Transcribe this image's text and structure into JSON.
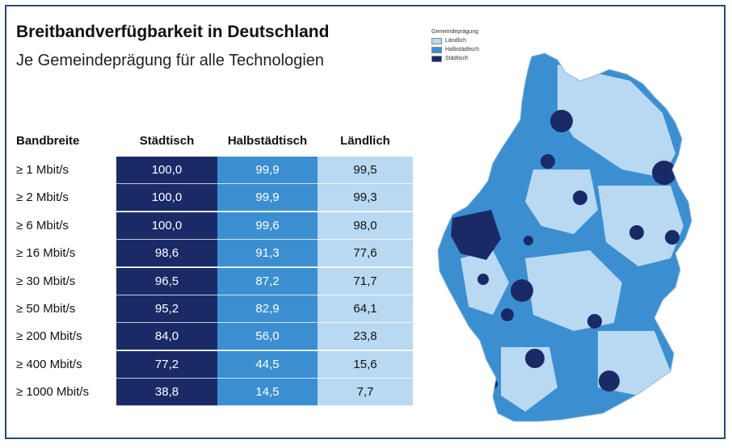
{
  "title": "Breitbandverfügbarkeit in Deutschland",
  "subtitle": "Je Gemeindeprägung für alle Technologien",
  "legend": {
    "title": "Gemeindeprägung",
    "items": [
      "Ländlich",
      "Halbstädtisch",
      "Städtisch"
    ]
  },
  "colors": {
    "urban": "#1a2a67",
    "semi": "#3b8fd0",
    "rural": "#b8d9f1"
  },
  "chart_data": {
    "type": "table",
    "title": "Breitbandverfügbarkeit in Deutschland",
    "subtitle": "Je Gemeindeprägung für alle Technologien",
    "columns": [
      "Bandbreite",
      "Städtisch",
      "Halbstädtisch",
      "Ländlich"
    ],
    "rows": [
      {
        "label": "≥ 1 Mbit/s",
        "values": [
          "100,0",
          "99,9",
          "99,5"
        ]
      },
      {
        "label": "≥ 2 Mbit/s",
        "values": [
          "100,0",
          "99,9",
          "99,3"
        ]
      },
      {
        "label": "≥ 6 Mbit/s",
        "values": [
          "100,0",
          "99,6",
          "98,0"
        ]
      },
      {
        "label": "≥ 16 Mbit/s",
        "values": [
          "98,6",
          "91,3",
          "77,6"
        ]
      },
      {
        "label": "≥ 30 Mbit/s",
        "values": [
          "96,5",
          "87,2",
          "71,7"
        ]
      },
      {
        "label": "≥ 50 Mbit/s",
        "values": [
          "95,2",
          "82,9",
          "64,1"
        ]
      },
      {
        "label": "≥ 200 Mbit/s",
        "values": [
          "84,0",
          "56,0",
          "23,8"
        ]
      },
      {
        "label": "≥ 400 Mbit/s",
        "values": [
          "77,2",
          "44,5",
          "15,6"
        ]
      },
      {
        "label": "≥ 1000 Mbit/s",
        "values": [
          "38,8",
          "14,5",
          "7,7"
        ]
      }
    ]
  }
}
